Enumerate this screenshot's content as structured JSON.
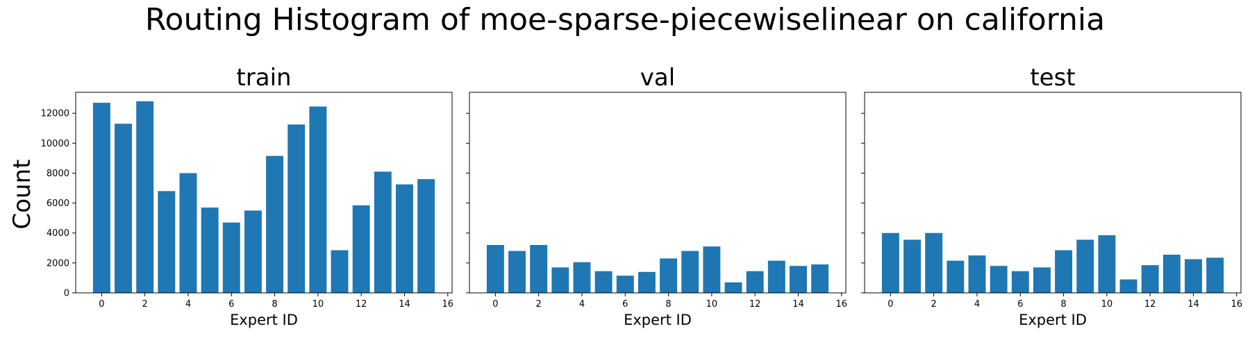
{
  "figure": {
    "suptitle": "Routing Histogram of moe-sparse-piecewiselinear on california",
    "shared_ylabel": "Count"
  },
  "chart_data": [
    {
      "type": "bar",
      "title": "train",
      "xlabel": "Expert ID",
      "ylabel": "Count",
      "x": [
        0,
        1,
        2,
        3,
        4,
        5,
        6,
        7,
        8,
        9,
        10,
        11,
        12,
        13,
        14,
        15
      ],
      "values": [
        12700,
        11300,
        12800,
        6800,
        8000,
        5700,
        4700,
        5500,
        9150,
        11250,
        12450,
        2850,
        5850,
        8100,
        7250,
        7600
      ],
      "xlim": [
        -1.2,
        16.2
      ],
      "ylim": [
        0,
        13400
      ],
      "xticks": [
        0,
        2,
        4,
        6,
        8,
        10,
        12,
        14,
        16
      ],
      "yticks": [
        0,
        2000,
        4000,
        6000,
        8000,
        10000,
        12000
      ],
      "ytick_labels_visible": true,
      "grid": false,
      "color": "#1f77b4"
    },
    {
      "type": "bar",
      "title": "val",
      "xlabel": "Expert ID",
      "ylabel": "",
      "x": [
        0,
        1,
        2,
        3,
        4,
        5,
        6,
        7,
        8,
        9,
        10,
        11,
        12,
        13,
        14,
        15
      ],
      "values": [
        3200,
        2800,
        3200,
        1700,
        2050,
        1450,
        1150,
        1400,
        2300,
        2800,
        3100,
        700,
        1450,
        2150,
        1800,
        1900
      ],
      "xlim": [
        -1.2,
        16.2
      ],
      "ylim": [
        0,
        13400
      ],
      "xticks": [
        0,
        2,
        4,
        6,
        8,
        10,
        12,
        14,
        16
      ],
      "yticks": [
        0,
        2000,
        4000,
        6000,
        8000,
        10000,
        12000
      ],
      "ytick_labels_visible": false,
      "grid": false,
      "color": "#1f77b4"
    },
    {
      "type": "bar",
      "title": "test",
      "xlabel": "Expert ID",
      "ylabel": "",
      "x": [
        0,
        1,
        2,
        3,
        4,
        5,
        6,
        7,
        8,
        9,
        10,
        11,
        12,
        13,
        14,
        15
      ],
      "values": [
        4000,
        3550,
        4000,
        2150,
        2500,
        1800,
        1450,
        1700,
        2850,
        3550,
        3850,
        900,
        1850,
        2550,
        2250,
        2350
      ],
      "xlim": [
        -1.2,
        16.2
      ],
      "ylim": [
        0,
        13400
      ],
      "xticks": [
        0,
        2,
        4,
        6,
        8,
        10,
        12,
        14,
        16
      ],
      "yticks": [
        0,
        2000,
        4000,
        6000,
        8000,
        10000,
        12000
      ],
      "ytick_labels_visible": false,
      "grid": false,
      "color": "#1f77b4"
    }
  ]
}
